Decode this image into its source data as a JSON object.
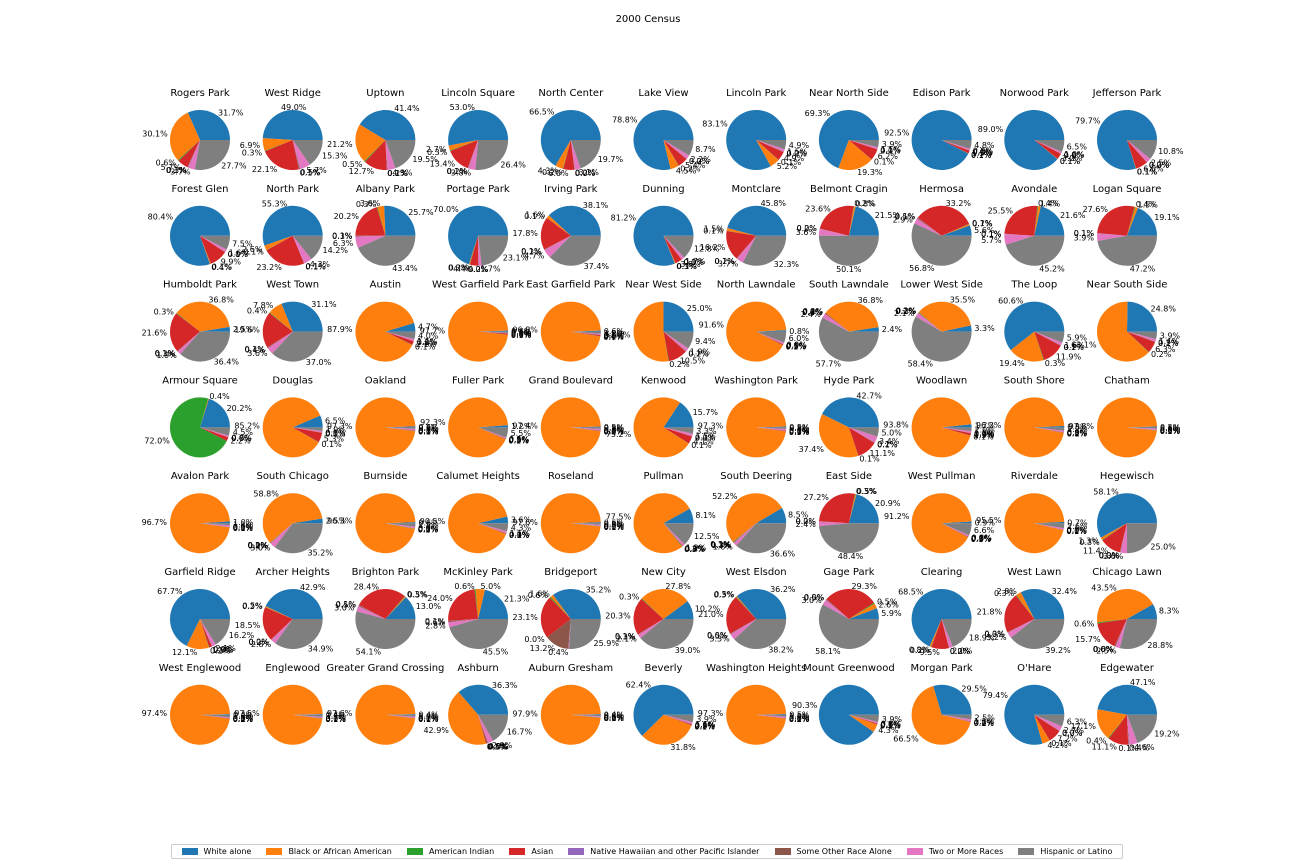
{
  "figure": {
    "title": "2000 Census"
  },
  "colors": [
    "#1f77b4",
    "#ff7f0e",
    "#2ca02c",
    "#d62728",
    "#9467bd",
    "#8c564b",
    "#e377c2",
    "#7f7f7f"
  ],
  "legend": {
    "placement": "bottom",
    "entries": [
      "White alone",
      "Black or African American",
      "American Indian",
      "Asian",
      "Native Hawaiian and other Pacific Islander",
      "Some Other Race Alone",
      "Two or More Races",
      "Hispanic or Latino"
    ]
  },
  "chart_data": {
    "type": "pie",
    "label_format": "percent, one decimal",
    "start_angle": 0,
    "grid": {
      "rows": 7,
      "cols": 11
    },
    "categories": [
      "White alone",
      "Black or African American",
      "American Indian",
      "Asian",
      "Native Hawaiian and other Pacific Islander",
      "Some Other Race Alone",
      "Two or More Races",
      "Hispanic or Latino"
    ],
    "pies": [
      {
        "title": "Rogers Park",
        "values": [
          28.1,
          26.7,
          0.5,
          5.1,
          0.1,
          0.3,
          3.3,
          24.6
        ]
      },
      {
        "title": "West Ridge",
        "values": [
          46.1,
          6.5,
          0.3,
          20.8,
          0.1,
          0.5,
          5.4,
          14.4
        ]
      },
      {
        "title": "Uptown",
        "values": [
          38.1,
          19.5,
          0.5,
          11.7,
          0.1,
          0.2,
          4.0,
          18.0
        ]
      },
      {
        "title": "Lincoln Square",
        "values": [
          47.1,
          2.4,
          0.3,
          11.9,
          0.1,
          0.2,
          3.4,
          23.5
        ]
      },
      {
        "title": "North Center",
        "values": [
          62.0,
          4.0,
          0.2,
          5.6,
          0.0,
          0.2,
          2.9,
          18.4
        ]
      },
      {
        "title": "Lake View",
        "values": [
          76.4,
          4.4,
          0.2,
          5.2,
          0.0,
          0.2,
          2.1,
          8.4
        ]
      },
      {
        "title": "Lincoln Park",
        "values": [
          82.6,
          5.2,
          0.1,
          4.9,
          0.0,
          0.2,
          1.5,
          4.9
        ]
      },
      {
        "title": "Near North Side",
        "values": [
          68.3,
          19.0,
          0.1,
          6.1,
          0.0,
          0.1,
          1.1,
          3.8
        ]
      },
      {
        "title": "Edison Park",
        "values": [
          92.2,
          0.1,
          0.1,
          1.5,
          0.0,
          0.1,
          0.9,
          4.8
        ]
      },
      {
        "title": "Norwood Park",
        "values": [
          86.6,
          0.1,
          0.1,
          3.1,
          0.0,
          0.1,
          1.0,
          6.3
        ]
      },
      {
        "title": "Jefferson Park",
        "values": [
          77.9,
          0.1,
          0.1,
          6.4,
          0.0,
          0.2,
          2.4,
          10.6
        ]
      },
      {
        "title": "Forest Glen",
        "values": [
          79.9,
          0.4,
          0.1,
          9.8,
          0.0,
          0.1,
          1.6,
          7.5
        ]
      },
      {
        "title": "North Park",
        "values": [
          52.5,
          2.5,
          0.1,
          22.0,
          0.1,
          0.1,
          4.1,
          13.5
        ]
      },
      {
        "title": "Albany Park",
        "values": [
          22.1,
          3.1,
          0.3,
          17.4,
          0.1,
          0.3,
          5.4,
          37.3
        ]
      },
      {
        "title": "Portage Park",
        "values": [
          62.1,
          0.3,
          0.2,
          3.9,
          0.0,
          0.2,
          1.5,
          20.5
        ]
      },
      {
        "title": "Irving Park",
        "values": [
          35.6,
          1.5,
          0.1,
          16.6,
          0.1,
          0.2,
          4.4,
          34.9
        ]
      },
      {
        "title": "Dunning",
        "values": [
          77.2,
          0.3,
          0.1,
          3.6,
          0.0,
          0.1,
          1.6,
          12.2
        ]
      },
      {
        "title": "Montclare",
        "values": [
          44.6,
          1.5,
          0.1,
          15.8,
          0.1,
          0.2,
          3.6,
          31.5
        ]
      },
      {
        "title": "Belmont Cragin",
        "values": [
          20.7,
          0.8,
          0.2,
          22.8,
          0.0,
          0.2,
          3.5,
          48.3
        ]
      },
      {
        "title": "Hermosa",
        "values": [
          5.4,
          0.7,
          0.1,
          31.8,
          0.1,
          0.5,
          2.8,
          54.4
        ]
      },
      {
        "title": "Avondale",
        "values": [
          21.2,
          1.4,
          0.4,
          25.1,
          0.1,
          0.1,
          5.6,
          44.4
        ]
      },
      {
        "title": "Logan Square",
        "values": [
          18.4,
          1.4,
          0.4,
          26.6,
          0.1,
          0.1,
          3.8,
          45.5
        ]
      },
      {
        "title": "Humboldt Park",
        "values": [
          2.5,
          36.8,
          0.3,
          21.6,
          0.1,
          0.3,
          1.9,
          36.4
        ]
      },
      {
        "title": "West Town",
        "values": [
          30.8,
          7.7,
          0.4,
          19.4,
          0.1,
          0.4,
          3.6,
          36.6
        ]
      },
      {
        "title": "Austin",
        "values": [
          4.7,
          87.8,
          0.1,
          2.1,
          0.0,
          0.1,
          1.1,
          4.0
        ]
      },
      {
        "title": "West Garfield Park",
        "values": [
          0.6,
          97.7,
          0.1,
          0.6,
          0.0,
          0.1,
          0.3,
          0.6
        ]
      },
      {
        "title": "East Garfield Park",
        "values": [
          0.6,
          96.8,
          0.1,
          0.6,
          0.0,
          0.1,
          0.6,
          1.2
        ]
      },
      {
        "title": "Near West Side",
        "values": [
          23.9,
          50.3,
          0.2,
          10.0,
          0.1,
          0.2,
          1.8,
          9.0
        ]
      },
      {
        "title": "North Lawndale",
        "values": [
          0.8,
          91.6,
          0.1,
          0.5,
          0.0,
          0.1,
          0.9,
          6.0
        ]
      },
      {
        "title": "South Lawndale",
        "values": [
          2.2,
          33.7,
          0.2,
          0.4,
          0.0,
          0.1,
          2.2,
          52.9
        ]
      },
      {
        "title": "Lower West Side",
        "values": [
          3.2,
          34.2,
          0.2,
          0.2,
          0.1,
          0.2,
          2.0,
          56.3
        ]
      },
      {
        "title": "The Loop",
        "values": [
          60.6,
          19.4,
          0.3,
          11.9,
          0.1,
          0.2,
          1.6,
          5.9
        ]
      },
      {
        "title": "Near South Side",
        "values": [
          24.5,
          62.4,
          0.2,
          6.2,
          0.1,
          0.2,
          1.4,
          3.9
        ]
      },
      {
        "title": "Armour Square",
        "values": [
          16.8,
          0.3,
          59.8,
          1.8,
          0.0,
          0.0,
          0.7,
          3.7
        ]
      },
      {
        "title": "Douglas",
        "values": [
          6.5,
          85.2,
          0.1,
          5.3,
          0.0,
          0.1,
          0.9,
          1.9
        ]
      },
      {
        "title": "Oakland",
        "values": [
          0.6,
          97.3,
          0.1,
          0.3,
          0.0,
          0.1,
          0.8,
          0.8
        ]
      },
      {
        "title": "Fuller Park",
        "values": [
          1.2,
          92.3,
          0.1,
          0.3,
          0.0,
          0.1,
          0.5,
          5.5
        ]
      },
      {
        "title": "Grand Boulevard",
        "values": [
          0.5,
          97.4,
          0.1,
          0.3,
          0.0,
          0.1,
          0.8,
          0.8
        ]
      },
      {
        "title": "Kenwood",
        "values": [
          15.7,
          75.2,
          0.1,
          4.1,
          0.0,
          0.1,
          1.5,
          3.3
        ]
      },
      {
        "title": "Washington Park",
        "values": [
          0.5,
          97.3,
          0.1,
          0.3,
          0.0,
          0.1,
          0.9,
          0.8
        ]
      },
      {
        "title": "Hyde Park",
        "values": [
          42.7,
          37.4,
          0.1,
          11.1,
          0.1,
          0.2,
          3.4,
          5.0
        ]
      },
      {
        "title": "Woodlawn",
        "values": [
          1.7,
          93.8,
          0.1,
          1.3,
          0.0,
          0.1,
          1.0,
          2.0
        ]
      },
      {
        "title": "South Shore",
        "values": [
          0.8,
          96.2,
          0.1,
          0.2,
          0.0,
          0.1,
          0.9,
          1.7
        ]
      },
      {
        "title": "Chatham",
        "values": [
          0.5,
          97.8,
          0.1,
          0.1,
          0.0,
          0.1,
          0.8,
          0.6
        ]
      },
      {
        "title": "Avalon Park",
        "values": [
          1.0,
          96.7,
          0.1,
          0.1,
          0.0,
          0.1,
          0.9,
          1.1
        ]
      },
      {
        "title": "South Chicago",
        "values": [
          2.5,
          58.8,
          0.2,
          0.1,
          0.0,
          0.2,
          3.0,
          35.2
        ]
      },
      {
        "title": "Burnside",
        "values": [
          0.6,
          96.3,
          0.2,
          0.1,
          0.0,
          0.1,
          0.9,
          1.8
        ]
      },
      {
        "title": "Calumet Heights",
        "values": [
          3.6,
          90.5,
          0.1,
          0.3,
          0.0,
          0.1,
          1.1,
          4.3
        ]
      },
      {
        "title": "Roseland",
        "values": [
          0.6,
          97.6,
          0.1,
          0.1,
          0.0,
          0.1,
          0.7,
          0.8
        ]
      },
      {
        "title": "Pullman",
        "values": [
          8.1,
          77.5,
          0.3,
          0.3,
          0.0,
          0.1,
          1.2,
          12.5
        ]
      },
      {
        "title": "South Deering",
        "values": [
          8.5,
          52.2,
          0.3,
          0.2,
          0.1,
          0.3,
          1.8,
          36.6
        ]
      },
      {
        "title": "East Side",
        "values": [
          20.8,
          0.5,
          0.3,
          27.0,
          0.0,
          0.2,
          2.4,
          48.1
        ]
      },
      {
        "title": "West Pullman",
        "values": [
          0.9,
          91.2,
          0.1,
          0.3,
          0.0,
          0.1,
          0.8,
          6.6
        ]
      },
      {
        "title": "Riverdale",
        "values": [
          0.7,
          95.5,
          0.1,
          0.1,
          0.0,
          0.1,
          0.9,
          2.6
        ]
      },
      {
        "title": "Hegewisch",
        "values": [
          57.9,
          1.3,
          0.3,
          11.4,
          0.0,
          0.3,
          3.6,
          24.9
        ]
      },
      {
        "title": "Garfield Ridge",
        "values": [
          63.7,
          11.4,
          0.2,
          1.4,
          0.0,
          0.2,
          2.0,
          15.2
        ]
      },
      {
        "title": "Archer Heights",
        "values": [
          42.8,
          0.5,
          0.2,
          18.4,
          0.0,
          0.2,
          2.8,
          34.8
        ]
      },
      {
        "title": "Brighton Park",
        "values": [
          12.8,
          0.5,
          0.3,
          27.9,
          0.1,
          0.5,
          2.9,
          53.1
        ]
      },
      {
        "title": "McKinley Park",
        "values": [
          21.2,
          5.0,
          0.6,
          23.9,
          0.1,
          0.6,
          2.8,
          45.2
        ]
      },
      {
        "title": "Bridgeport",
        "values": [
          34.9,
          1.6,
          0.6,
          22.9,
          0.0,
          13.1,
          0.4,
          25.7
        ]
      },
      {
        "title": "New City",
        "values": [
          10.2,
          27.8,
          0.3,
          20.3,
          0.1,
          0.3,
          2.1,
          39.0
        ]
      },
      {
        "title": "West Elsdon",
        "values": [
          36.1,
          0.5,
          0.3,
          21.0,
          0.0,
          0.5,
          3.3,
          38.1
        ]
      },
      {
        "title": "Gage Park",
        "values": [
          5.6,
          2.5,
          0.5,
          27.7,
          0.0,
          0.5,
          2.8,
          55.0
        ]
      },
      {
        "title": "Clearing",
        "values": [
          68.6,
          0.8,
          0.2,
          9.5,
          0.0,
          0.2,
          2.0,
          18.9
        ]
      },
      {
        "title": "West Lawn",
        "values": [
          32.5,
          2.8,
          0.3,
          21.8,
          0.0,
          0.3,
          3.2,
          39.3
        ]
      },
      {
        "title": "Chicago Lawn",
        "values": [
          8.3,
          43.6,
          0.6,
          15.7,
          0.0,
          0.6,
          2.5,
          28.9
        ]
      },
      {
        "title": "West Englewood",
        "values": [
          0.4,
          97.4,
          0.1,
          0.2,
          0.0,
          0.1,
          0.5,
          1.3
        ]
      },
      {
        "title": "Englewood",
        "values": [
          0.4,
          97.5,
          0.1,
          0.1,
          0.0,
          0.1,
          0.7,
          1.1
        ]
      },
      {
        "title": "Greater Grand Crossing",
        "values": [
          0.4,
          97.6,
          0.1,
          0.1,
          0.0,
          0.1,
          0.7,
          1.0
        ]
      },
      {
        "title": "Ashburn",
        "values": [
          33.3,
          39.3,
          0.1,
          0.5,
          0.0,
          0.5,
          2.7,
          15.3
        ]
      },
      {
        "title": "Auburn Gresham",
        "values": [
          0.4,
          97.9,
          0.1,
          0.1,
          0.0,
          0.1,
          0.6,
          0.8
        ]
      },
      {
        "title": "Beverly",
        "values": [
          62.2,
          31.7,
          0.1,
          0.5,
          0.0,
          0.2,
          1.1,
          3.9
        ]
      },
      {
        "title": "Washington Heights",
        "values": [
          0.5,
          97.3,
          0.1,
          0.2,
          0.0,
          0.1,
          0.8,
          1.0
        ]
      },
      {
        "title": "Mount Greenwood",
        "values": [
          88.9,
          4.2,
          0.1,
          0.5,
          0.0,
          0.1,
          0.8,
          3.8
        ]
      },
      {
        "title": "Morgan Park",
        "values": [
          29.5,
          66.4,
          0.1,
          0.2,
          0.0,
          0.1,
          1.1,
          2.5
        ]
      },
      {
        "title": "O'Hare",
        "values": [
          79.7,
          4.2,
          0.1,
          7.2,
          0.0,
          0.2,
          2.7,
          6.3
        ]
      },
      {
        "title": "Edgewater",
        "values": [
          43.3,
          15.7,
          0.4,
          10.2,
          0.1,
          0.4,
          4.2,
          17.7
        ]
      }
    ]
  }
}
